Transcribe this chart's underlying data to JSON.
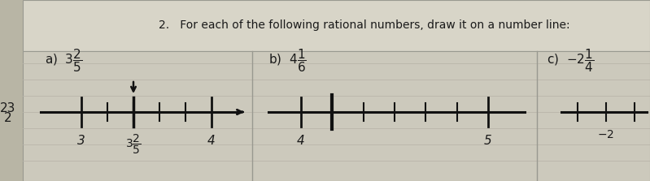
{
  "paper_color": "#ccc9bc",
  "paper_color2": "#d4d0c4",
  "ruled_color": "#b8b4a8",
  "text_color": "#1a1a1a",
  "line_color": "#111111",
  "tick_color": "#111111",
  "title": "2.   For each of the following rational numbers, draw it on a number line:",
  "label_a": "a)  $3\\dfrac{2}{5}$",
  "label_b": "b)  $4\\dfrac{1}{6}$",
  "label_c": "c)  $-2\\dfrac{1}{4}$",
  "left_margin_text": "23",
  "border_color": "#999990"
}
